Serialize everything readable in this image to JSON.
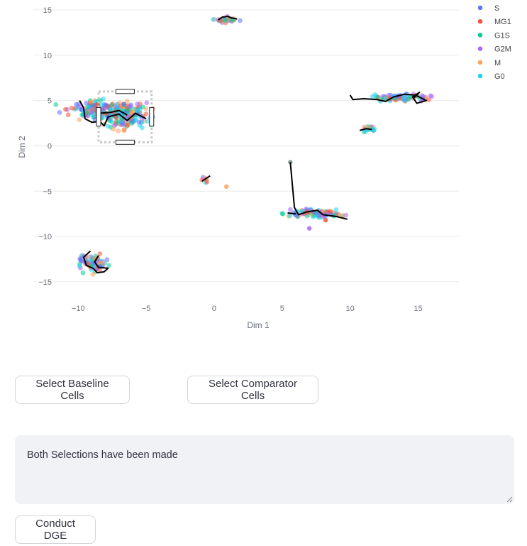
{
  "chart_data": {
    "type": "scatter",
    "xlabel": "Dim 1",
    "ylabel": "Dim 2",
    "xlim": [
      -13.3,
      18
    ],
    "ylim": [
      -17.2,
      15.7
    ],
    "x_ticks": [
      -10,
      -5,
      0,
      5,
      10,
      15
    ],
    "x_tick_labels": [
      "−10",
      "−5",
      "0",
      "5",
      "10",
      "15"
    ],
    "y_ticks": [
      15,
      10,
      5,
      0,
      -5,
      -10,
      -15
    ],
    "y_tick_labels": [
      "15",
      "10",
      "5",
      "0",
      "−5",
      "−10",
      "−15"
    ],
    "grid": true,
    "legend_position": "top-right",
    "series": [
      {
        "name": "S",
        "color": "#636efa"
      },
      {
        "name": "MG1",
        "color": "#ef553b"
      },
      {
        "name": "G1S",
        "color": "#00cc96"
      },
      {
        "name": "G2M",
        "color": "#ab63fa"
      },
      {
        "name": "M",
        "color": "#ffa15a"
      },
      {
        "name": "G0",
        "color": "#19d3f3"
      }
    ],
    "clusters": [
      {
        "center": [
          -8.6,
          4.0
        ],
        "spread": [
          1.6,
          0.9
        ],
        "n": 140
      },
      {
        "center": [
          -6.4,
          3.2
        ],
        "spread": [
          1.5,
          1.2
        ],
        "n": 160
      },
      {
        "center": [
          0.8,
          13.9
        ],
        "spread": [
          0.8,
          0.25
        ],
        "n": 30
      },
      {
        "center": [
          13.8,
          5.3
        ],
        "spread": [
          1.8,
          0.35
        ],
        "n": 70
      },
      {
        "center": [
          11.4,
          1.9
        ],
        "spread": [
          0.5,
          0.3
        ],
        "n": 18
      },
      {
        "center": [
          7.4,
          -7.4
        ],
        "spread": [
          1.9,
          0.35
        ],
        "n": 80
      },
      {
        "center": [
          -8.9,
          -13.0
        ],
        "spread": [
          0.8,
          0.8
        ],
        "n": 80
      },
      {
        "center": [
          -0.7,
          -3.8
        ],
        "spread": [
          0.3,
          0.3
        ],
        "n": 6
      }
    ],
    "single_points": [
      {
        "x": 0.9,
        "y": -4.5,
        "color": "#ffa15a"
      },
      {
        "x": 5.6,
        "y": -1.8,
        "color": "#7f8c8d"
      },
      {
        "x": 7.0,
        "y": -9.1,
        "color": "#ab63fa"
      },
      {
        "x": 8.2,
        "y": -8.2,
        "color": "#ef553b"
      }
    ],
    "trajectories": [
      [
        [
          -9.9,
          5.0
        ],
        [
          -9.6,
          4.2
        ],
        [
          -9.5,
          3.0
        ],
        [
          -9.0,
          2.6
        ],
        [
          -8.4,
          2.7
        ],
        [
          -8.1,
          2.2
        ],
        [
          -7.8,
          3.2
        ],
        [
          -7.0,
          3.5
        ],
        [
          -6.4,
          2.8
        ],
        [
          -5.8,
          3.6
        ],
        [
          -5.0,
          3.0
        ]
      ],
      [
        [
          -8.4,
          3.6
        ],
        [
          -7.6,
          3.7
        ],
        [
          -7.0,
          3.9
        ],
        [
          -6.4,
          3.4
        ]
      ],
      [
        [
          0.3,
          13.9
        ],
        [
          0.6,
          14.2
        ],
        [
          1.0,
          14.3
        ],
        [
          1.3,
          14.1
        ],
        [
          1.7,
          14.0
        ]
      ],
      [
        [
          10.0,
          5.6
        ],
        [
          10.2,
          5.1
        ],
        [
          11.0,
          5.2
        ],
        [
          12.0,
          5.1
        ],
        [
          12.6,
          4.9
        ],
        [
          13.2,
          5.4
        ],
        [
          14.0,
          5.7
        ],
        [
          14.8,
          5.6
        ],
        [
          15.6,
          5.0
        ],
        [
          14.9,
          4.7
        ],
        [
          14.6,
          5.4
        ],
        [
          15.1,
          5.9
        ],
        [
          14.7,
          5.3
        ]
      ],
      [
        [
          10.7,
          1.7
        ],
        [
          11.2,
          1.9
        ],
        [
          11.6,
          1.8
        ]
      ],
      [
        [
          5.6,
          -1.8
        ],
        [
          5.9,
          -6.8
        ],
        [
          6.2,
          -7.6
        ],
        [
          6.8,
          -7.3
        ],
        [
          7.6,
          -7.1
        ],
        [
          8.0,
          -7.6
        ],
        [
          9.0,
          -7.8
        ],
        [
          9.8,
          -8.1
        ]
      ],
      [
        [
          5.4,
          -7.4
        ],
        [
          6.0,
          -7.5
        ]
      ],
      [
        [
          -9.1,
          -11.6
        ],
        [
          -9.6,
          -12.3
        ],
        [
          -9.4,
          -13.2
        ],
        [
          -8.9,
          -13.5
        ],
        [
          -8.6,
          -14.0
        ],
        [
          -8.1,
          -13.9
        ],
        [
          -7.8,
          -13.5
        ],
        [
          -8.5,
          -13.4
        ],
        [
          -8.8,
          -12.8
        ],
        [
          -8.5,
          -12.1
        ]
      ],
      [
        [
          -0.9,
          -3.9
        ],
        [
          -0.6,
          -3.6
        ],
        [
          -0.3,
          -3.3
        ]
      ]
    ],
    "selection_box": {
      "x0": -8.5,
      "x1": -4.6,
      "y0": 0.4,
      "y1": 6.0
    }
  },
  "buttons": {
    "baseline": "Select Baseline Cells",
    "comparator": "Select Comparator Cells",
    "dge": "Conduct DGE"
  },
  "status_text": "Both Selections have been made"
}
